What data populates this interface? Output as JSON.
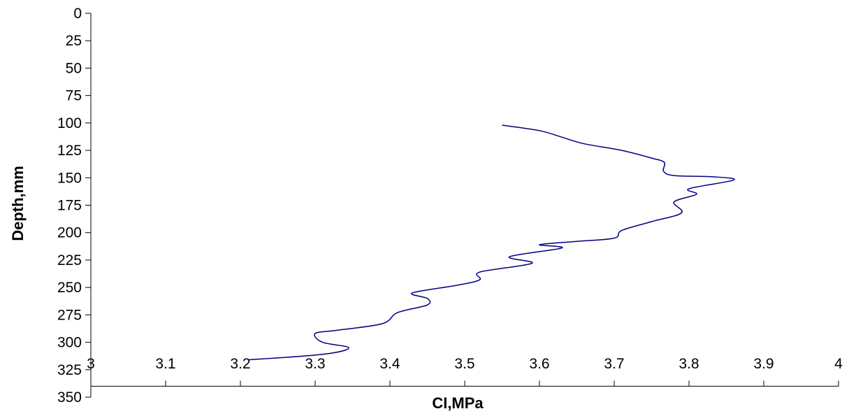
{
  "chart_data": {
    "type": "line",
    "title": "",
    "xlabel": "CI,MPa",
    "ylabel": "Depth,mm",
    "xlim": [
      3,
      4
    ],
    "ylim": [
      0,
      350
    ],
    "y_inverted": true,
    "x_axis_position": "crosses y at 340",
    "x_ticks": [
      3,
      3.1,
      3.2,
      3.3,
      3.4,
      3.5,
      3.6,
      3.7,
      3.8,
      3.9,
      4
    ],
    "x_tick_labels": [
      "3",
      "3.1",
      "3.2",
      "3.3",
      "3.4",
      "3.5",
      "3.6",
      "3.7",
      "3.8",
      "3.9",
      "4"
    ],
    "y_ticks": [
      0,
      25,
      50,
      75,
      100,
      125,
      150,
      175,
      200,
      225,
      250,
      275,
      300,
      325,
      350
    ],
    "y_tick_labels": [
      "0",
      "25",
      "50",
      "75",
      "100",
      "125",
      "150",
      "175",
      "200",
      "225",
      "250",
      "275",
      "300",
      "325",
      "350"
    ],
    "grid": false,
    "legend": "none",
    "line_color": "#000080",
    "series": [
      {
        "x": [
          3.55,
          3.6,
          3.63,
          3.66,
          3.71,
          3.75,
          3.767,
          3.766,
          3.78,
          3.83,
          3.86,
          3.8,
          3.81,
          3.78,
          3.79,
          3.75,
          3.71,
          3.7,
          3.65,
          3.6,
          3.63,
          3.56,
          3.59,
          3.52,
          3.52,
          3.49,
          3.43,
          3.45,
          3.45,
          3.41,
          3.39,
          3.33,
          3.3,
          3.31,
          3.345,
          3.31,
          3.21
        ],
        "y": [
          102,
          107,
          113,
          119,
          125,
          132,
          136,
          144,
          148,
          149,
          152,
          160,
          165,
          172,
          182,
          190,
          198,
          205,
          208,
          211,
          214,
          222,
          228,
          236,
          243,
          248,
          255,
          260,
          266,
          273,
          283,
          289,
          292,
          300,
          305,
          311,
          316
        ]
      }
    ]
  }
}
